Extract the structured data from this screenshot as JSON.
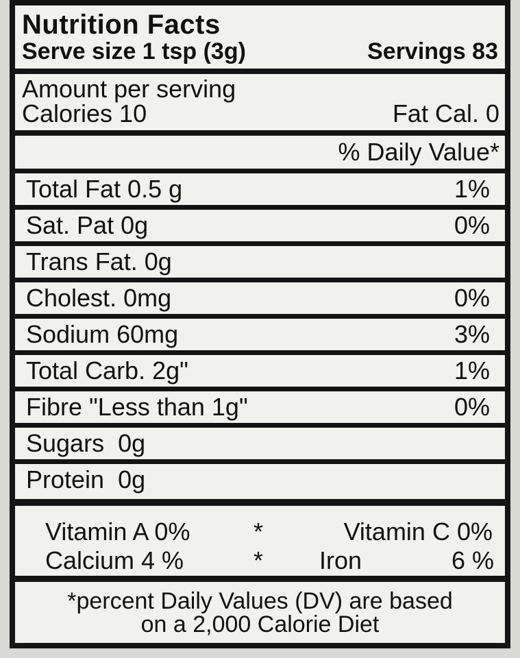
{
  "label": {
    "title": "Nutrition Facts",
    "serve_size": "Serve size 1 tsp (3g)",
    "servings": "Servings 83",
    "amount_per_serving": "Amount per serving",
    "calories": "Calories 10",
    "fat_calories": "Fat Cal. 0",
    "daily_value_header": "% Daily Value*",
    "rows": [
      {
        "name": "Total Fat 0.5 g",
        "dv": "1%"
      },
      {
        "name": "Sat. Pat 0g",
        "dv": "0%"
      },
      {
        "name": "Trans Fat. 0g",
        "dv": ""
      },
      {
        "name": "Cholest. 0mg",
        "dv": "0%"
      },
      {
        "name": "Sodium 60mg",
        "dv": "3%"
      },
      {
        "name": "Total Carb. 2g\"",
        "dv": "1%"
      },
      {
        "name": "Fibre \"Less than 1g\"",
        "dv": "0%"
      },
      {
        "name": "Sugars  0g",
        "dv": ""
      },
      {
        "name": "Protein  0g",
        "dv": ""
      }
    ],
    "vitamins": {
      "vitamin_a": "Vitamin A 0%",
      "vitamin_c": "Vitamin C 0%",
      "calcium": "Calcium 4 %",
      "iron_label": "Iron",
      "iron_value": "6 %",
      "separator": "*"
    },
    "footnote_line1": "*percent Daily Values (DV) are based",
    "footnote_line2": "on a 2,000 Calorie Diet"
  }
}
